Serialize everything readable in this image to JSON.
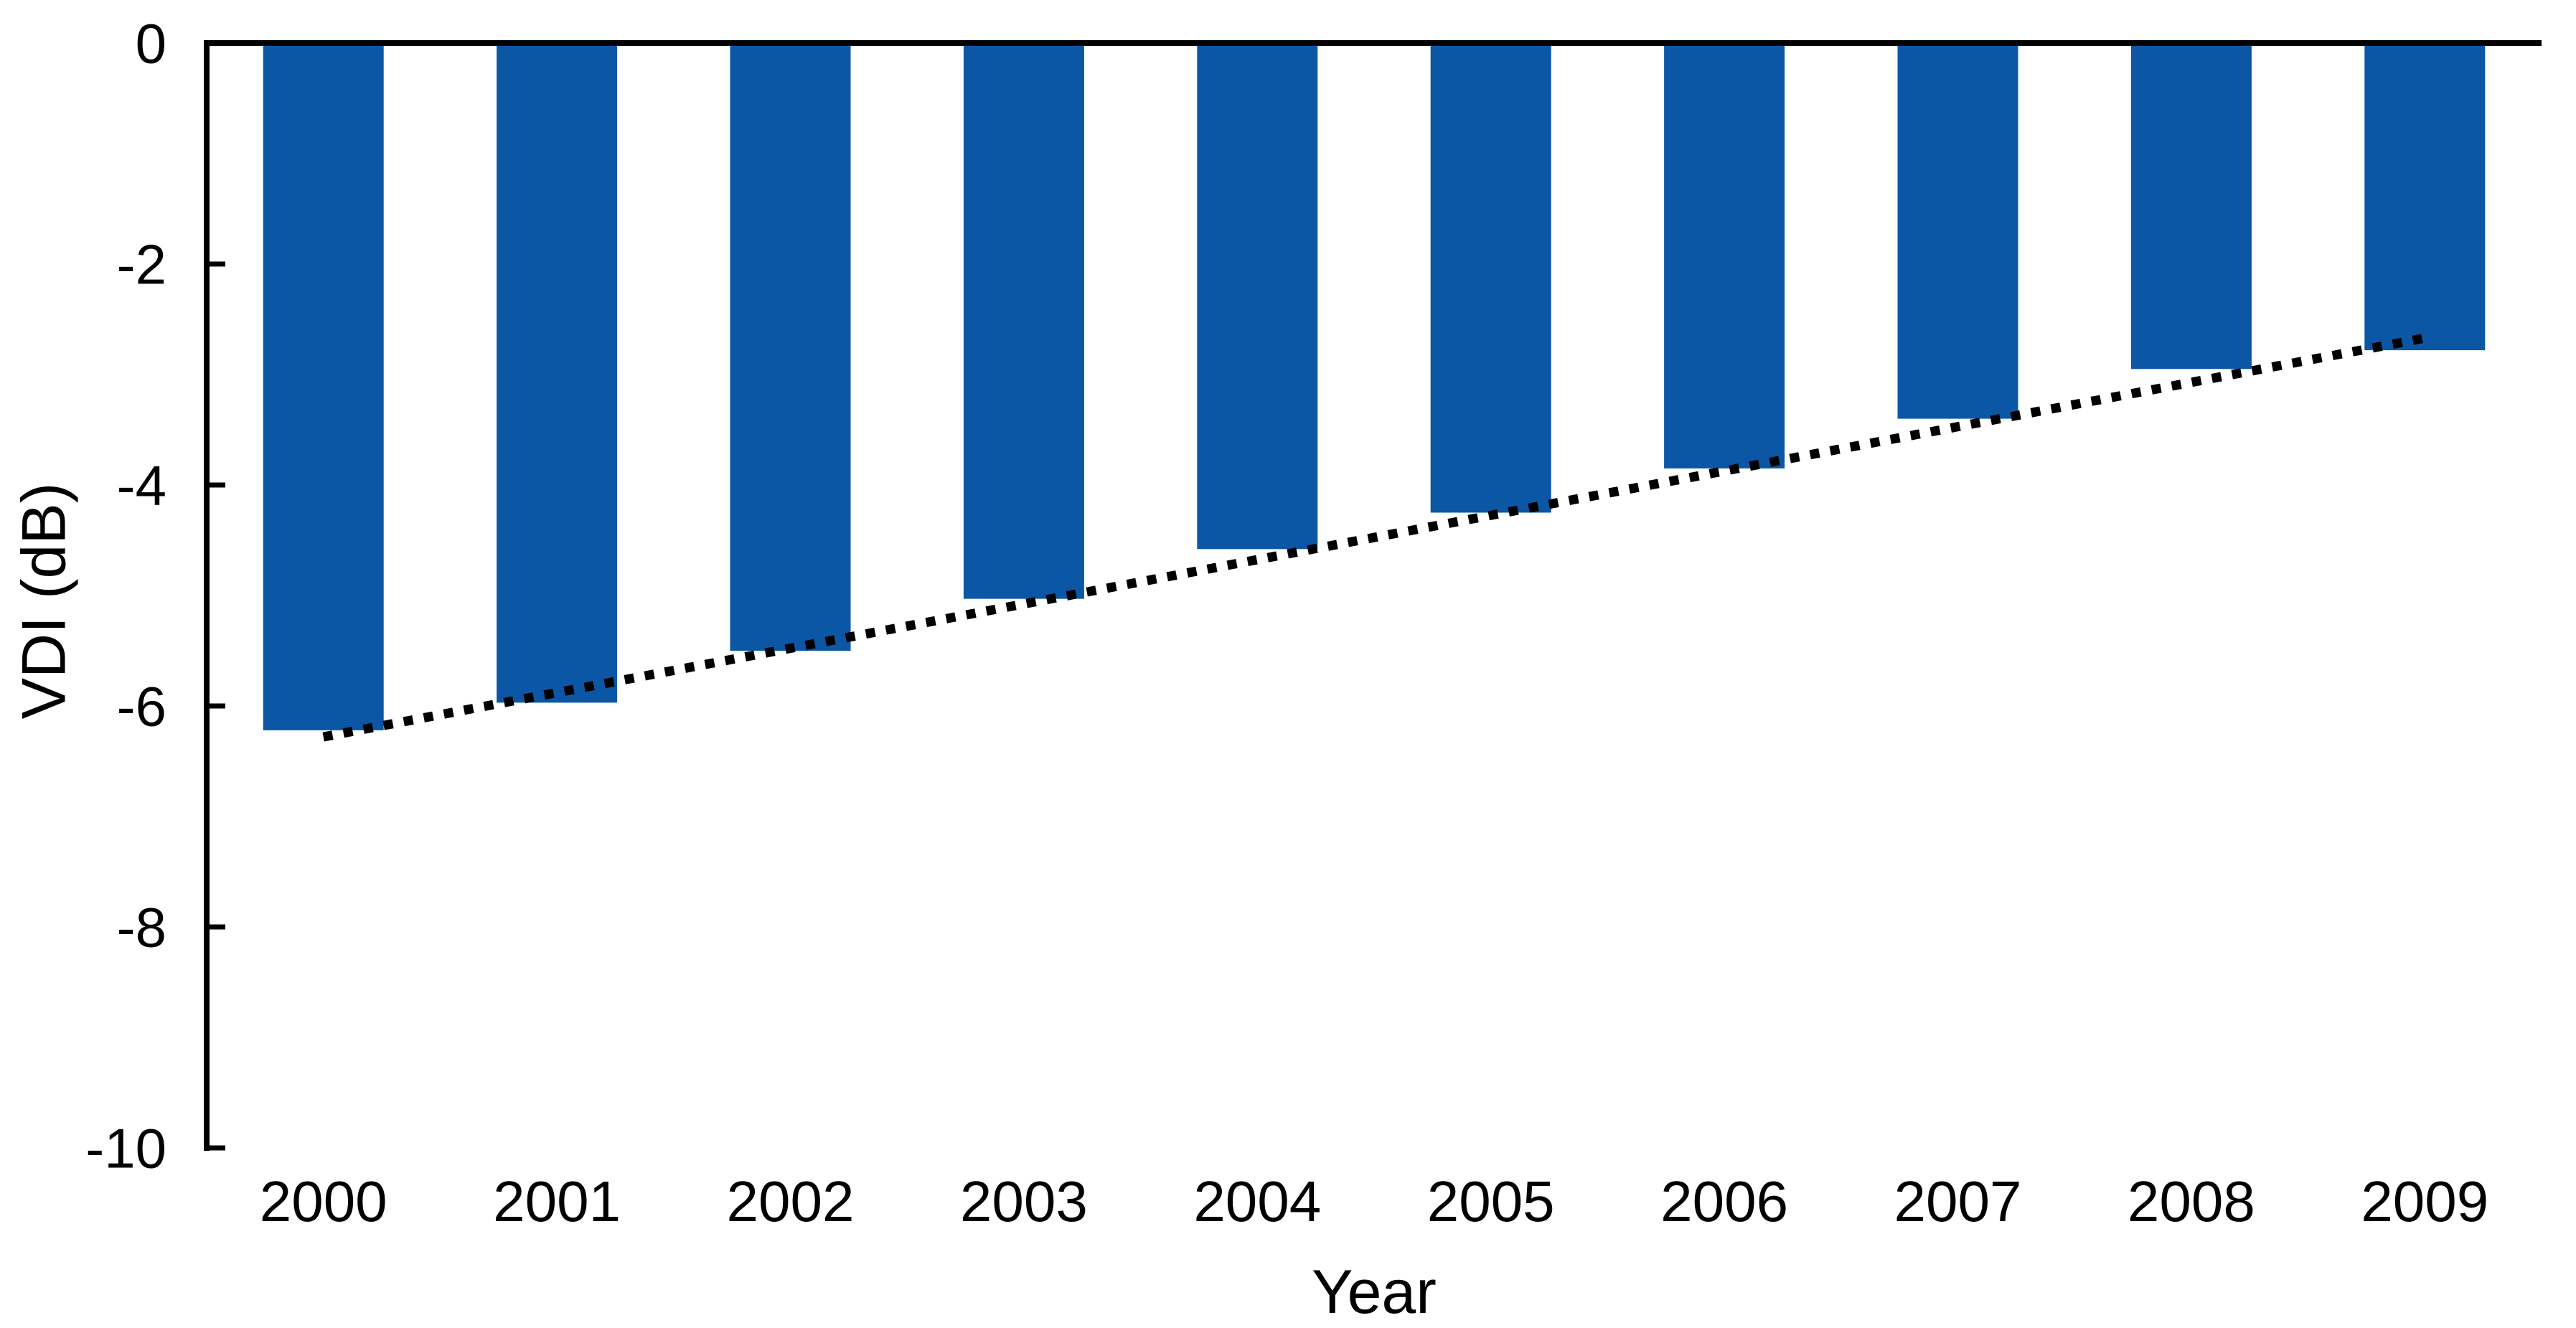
{
  "chart_data": {
    "type": "bar",
    "title": "",
    "xlabel": "Year",
    "ylabel": "VDI (dB)",
    "categories": [
      "2000",
      "2001",
      "2002",
      "2003",
      "2004",
      "2005",
      "2006",
      "2007",
      "2008",
      "2009"
    ],
    "series": [
      {
        "name": "VDI",
        "values": [
          -6.22,
          -5.97,
          -5.5,
          -5.03,
          -4.58,
          -4.25,
          -3.85,
          -3.4,
          -2.95,
          -2.78
        ]
      }
    ],
    "trendline": {
      "type": "linear",
      "style": "dotted",
      "color": "#000000",
      "start": {
        "x": "2000",
        "y": -6.28
      },
      "end": {
        "x": "2009",
        "y": -2.67
      }
    },
    "ylim": [
      -10,
      0
    ],
    "yticks": [
      0,
      -2,
      -4,
      -6,
      -8,
      -10
    ],
    "grid": false,
    "legend": false,
    "bar_color": "#0B57A5",
    "axis_color": "#000000",
    "text_color": "#000000",
    "background": "#FFFFFF"
  }
}
